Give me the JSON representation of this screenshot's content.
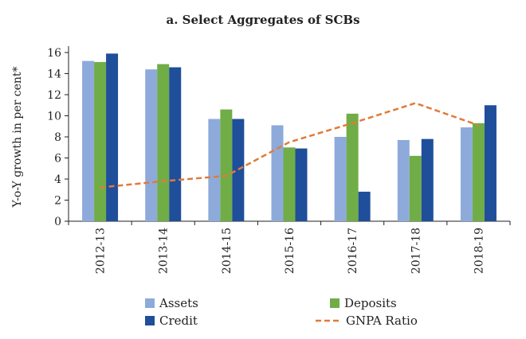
{
  "chart_data": {
    "type": "bar",
    "title": "a. Select Aggregates of SCBs",
    "ylabel": "Y-o-Y growth in per cent*",
    "xlabel": "",
    "ylim": [
      0,
      16
    ],
    "yticks": [
      0,
      2,
      4,
      6,
      8,
      10,
      12,
      14,
      16
    ],
    "categories": [
      "2012-13",
      "2013-14",
      "2014-15",
      "2015-16",
      "2016-17",
      "2017-18",
      "2018-19"
    ],
    "series": [
      {
        "name": "Assets",
        "kind": "bar",
        "color": "#8eaadb",
        "values": [
          15.2,
          14.4,
          9.7,
          9.1,
          8.0,
          7.7,
          8.9
        ]
      },
      {
        "name": "Deposits",
        "kind": "bar",
        "color": "#70ad47",
        "values": [
          15.1,
          14.9,
          10.6,
          7.0,
          10.2,
          6.2,
          9.3
        ]
      },
      {
        "name": "Credit",
        "kind": "bar",
        "color": "#1f4e9a",
        "values": [
          15.9,
          14.6,
          9.7,
          6.9,
          2.8,
          7.8,
          11.0
        ]
      },
      {
        "name": "GNPA Ratio",
        "kind": "line",
        "color": "#e07b39",
        "values": [
          3.2,
          3.8,
          4.3,
          7.5,
          9.3,
          11.2,
          9.1
        ]
      }
    ],
    "grid": false,
    "legend_position": "bottom"
  }
}
